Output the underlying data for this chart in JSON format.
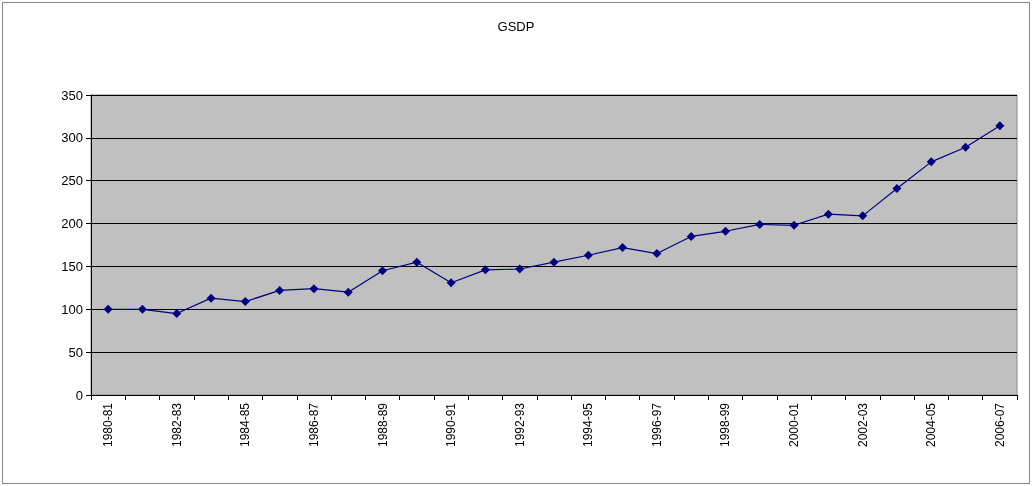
{
  "chart_data": {
    "type": "line",
    "title": "GSDP",
    "categories": [
      "1980-81",
      null,
      "1982-83",
      null,
      "1984-85",
      null,
      "1986-87",
      null,
      "1988-89",
      null,
      "1990-91",
      null,
      "1992-93",
      null,
      "1994-95",
      null,
      "1996-97",
      null,
      "1998-99",
      null,
      "2000-01",
      null,
      "2002-03",
      null,
      "2004-05",
      null,
      "2006-07"
    ],
    "values": [
      100,
      100,
      95,
      113,
      109,
      122,
      124,
      120,
      145,
      155,
      131,
      146,
      147,
      155,
      163,
      172,
      165,
      185,
      191,
      199,
      198,
      211,
      209,
      241,
      272,
      289,
      314
    ],
    "color": "#000080",
    "marker": "diamond",
    "ylim": [
      0,
      350
    ],
    "yticks": [
      0,
      50,
      100,
      150,
      200,
      250,
      300,
      350
    ],
    "grid": "y"
  }
}
